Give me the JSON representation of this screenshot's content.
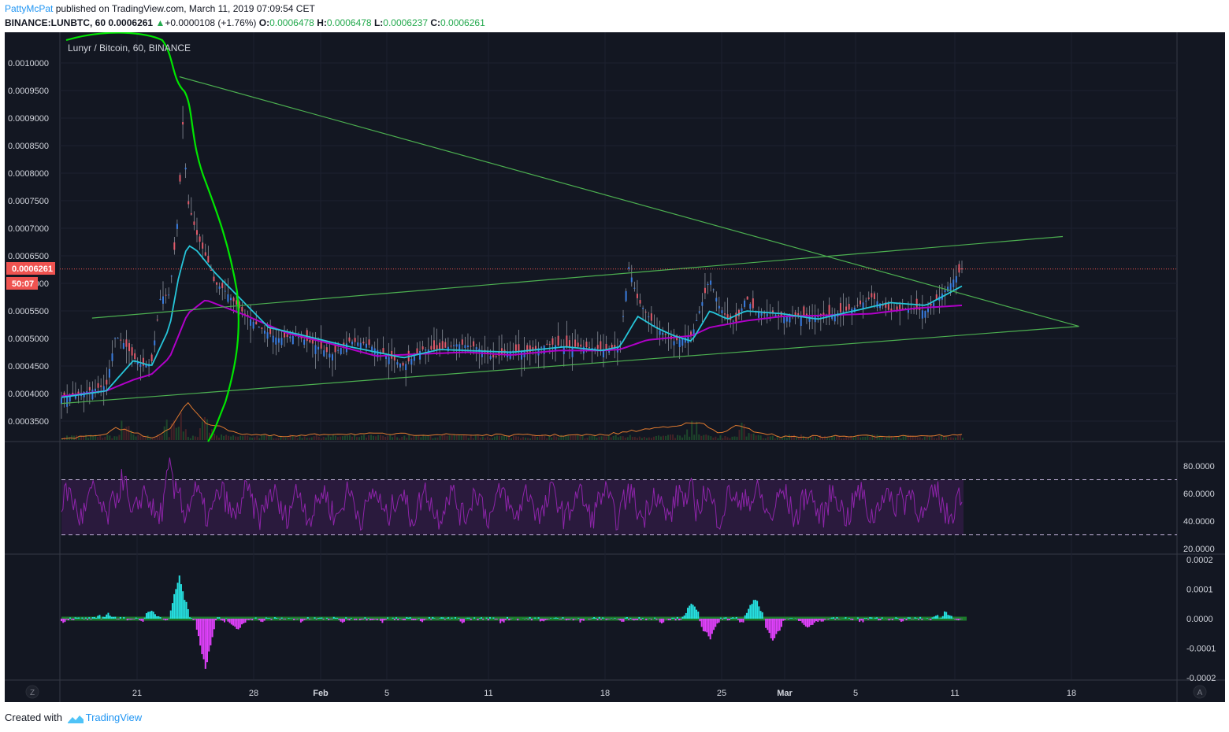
{
  "header": {
    "author": "PattyMcPat",
    "published_text": "published on TradingView.com, March 11, 2019 07:09:54 CET",
    "symbol": "BINANCE:LUNBTC, 60",
    "last": "0.0006261",
    "change": "+0.0000108 (+1.76%)",
    "o_label": "O:",
    "o": "0.0006478",
    "h_label": "H:",
    "h": "0.0006478",
    "l_label": "L:",
    "l": "0.0006237",
    "c_label": "C:",
    "c": "0.0006261"
  },
  "chart_title": "Lunyr / Bitcoin, 60, BINANCE",
  "price_tag": "0.0006261",
  "countdown": "50:07",
  "footer": {
    "created_with": "Created with",
    "brand": "TradingView"
  },
  "colors": {
    "background": "#131722",
    "trendline": "#4caf50",
    "volume_profile": "#00e600",
    "ema_fast": "#26c6da",
    "ema_slow": "#b000c8",
    "volume_ma": "#e07a2f",
    "rsi": "#8e24aa",
    "rsi_band": "#2a1a3d",
    "price_tag": "#ef5350",
    "hist_pos": "#26e0e0",
    "hist_neg": "#e040fb",
    "zero_line": "#1b7a2a"
  },
  "axis_buttons": {
    "left": "Z",
    "right": "A"
  },
  "chart_data": {
    "type": "line",
    "title": "Lunyr / Bitcoin, 60, BINANCE",
    "x_ticks": [
      "21",
      "28",
      "Feb",
      "5",
      "11",
      "18",
      "25",
      "Mar",
      "5",
      "11",
      "18"
    ],
    "price_axis": {
      "ylim": [
        0.00032,
        0.00109
      ],
      "ticks": [
        "0.0010000",
        "0.0009500",
        "0.0009000",
        "0.0008500",
        "0.0008000",
        "0.0007500",
        "0.0007000",
        "0.0006500",
        "0.0006000",
        "0.0005500",
        "0.0005000",
        "0.0004500",
        "0.0004000",
        "0.0003500"
      ],
      "last_price": 0.0006261
    },
    "series": [
      {
        "name": "close",
        "x": [
          0,
          0.03,
          0.05,
          0.06,
          0.07,
          0.08,
          0.09,
          0.1,
          0.11,
          0.12,
          0.125,
          0.13,
          0.135,
          0.14,
          0.15,
          0.16,
          0.165,
          0.17,
          0.18,
          0.19,
          0.2,
          0.22,
          0.24,
          0.26,
          0.28,
          0.3,
          0.32,
          0.34,
          0.36,
          0.38,
          0.4,
          0.42,
          0.44,
          0.46,
          0.48,
          0.5,
          0.52,
          0.54,
          0.56,
          0.58,
          0.6,
          0.62,
          0.63,
          0.64,
          0.66,
          0.68,
          0.7,
          0.72,
          0.73,
          0.74,
          0.75,
          0.76,
          0.77,
          0.78,
          0.79,
          0.8,
          0.82,
          0.84,
          0.86,
          0.88,
          0.9,
          0.92,
          0.94,
          0.96,
          0.98,
          1.0
        ],
        "values": [
          0.000392,
          0.000405,
          0.000415,
          0.000505,
          0.00049,
          0.000465,
          0.00045,
          0.000455,
          0.000575,
          0.00058,
          0.000655,
          0.00073,
          0.000895,
          0.00075,
          0.00069,
          0.00065,
          0.00063,
          0.0006,
          0.00059,
          0.00057,
          0.00055,
          0.00052,
          0.0005,
          0.000505,
          0.00049,
          0.00047,
          0.000495,
          0.00049,
          0.00047,
          0.00045,
          0.00048,
          0.00048,
          0.00049,
          0.000485,
          0.000465,
          0.000478,
          0.000475,
          0.00049,
          0.000485,
          0.000485,
          0.00048,
          0.000485,
          0.00063,
          0.00057,
          0.00052,
          0.000495,
          0.000505,
          0.00061,
          0.00056,
          0.000535,
          0.00053,
          0.000575,
          0.00055,
          0.000545,
          0.000545,
          0.00054,
          0.00054,
          0.00054,
          0.000545,
          0.000555,
          0.000575,
          0.00055,
          0.000555,
          0.00055,
          0.000585,
          0.000626
        ]
      },
      {
        "name": "EMA fast",
        "x": [
          0,
          0.05,
          0.08,
          0.1,
          0.12,
          0.13,
          0.14,
          0.15,
          0.17,
          0.2,
          0.23,
          0.27,
          0.32,
          0.38,
          0.42,
          0.5,
          0.56,
          0.6,
          0.62,
          0.64,
          0.66,
          0.68,
          0.7,
          0.72,
          0.74,
          0.76,
          0.8,
          0.84,
          0.88,
          0.92,
          0.96,
          1.0
        ],
        "values": [
          0.000393,
          0.000405,
          0.00046,
          0.00045,
          0.00052,
          0.00061,
          0.00067,
          0.00066,
          0.00062,
          0.00057,
          0.00052,
          0.000505,
          0.000485,
          0.000465,
          0.00048,
          0.000475,
          0.000485,
          0.000478,
          0.000485,
          0.00054,
          0.00052,
          0.000505,
          0.000495,
          0.00055,
          0.000535,
          0.00055,
          0.000545,
          0.000535,
          0.00055,
          0.000565,
          0.00056,
          0.000595
        ]
      },
      {
        "name": "EMA slow",
        "x": [
          0,
          0.05,
          0.08,
          0.1,
          0.12,
          0.14,
          0.16,
          0.2,
          0.25,
          0.3,
          0.35,
          0.4,
          0.45,
          0.5,
          0.55,
          0.6,
          0.62,
          0.65,
          0.7,
          0.72,
          0.76,
          0.8,
          0.85,
          0.9,
          0.95,
          1.0
        ],
        "values": [
          0.000395,
          0.000405,
          0.000425,
          0.000435,
          0.000465,
          0.000545,
          0.00057,
          0.000545,
          0.00051,
          0.00049,
          0.000468,
          0.000472,
          0.000475,
          0.00047,
          0.000478,
          0.000478,
          0.00048,
          0.000497,
          0.000505,
          0.00052,
          0.000532,
          0.00054,
          0.000542,
          0.000545,
          0.000555,
          0.00056
        ]
      }
    ],
    "trendlines": [
      {
        "from": [
          0.0,
          0.000382
        ],
        "to": [
          1.13,
          0.000522
        ]
      },
      {
        "from": [
          0.034,
          0.000537
        ],
        "to": [
          1.112,
          0.000685
        ]
      },
      {
        "from": [
          0.131,
          0.000975
        ],
        "to": [
          1.13,
          0.000522
        ]
      }
    ],
    "rsi": {
      "ylim": [
        15,
        90
      ],
      "ticks": [
        "80.0000",
        "60.0000",
        "40.0000",
        "20.0000"
      ],
      "upper": 70,
      "lower": 30
    },
    "oscillator": {
      "ylim": [
        -0.00022,
        0.00022
      ],
      "ticks": [
        "0.0002",
        "0.0001",
        "0.0000",
        "-0.0001",
        "-0.0002"
      ]
    }
  }
}
